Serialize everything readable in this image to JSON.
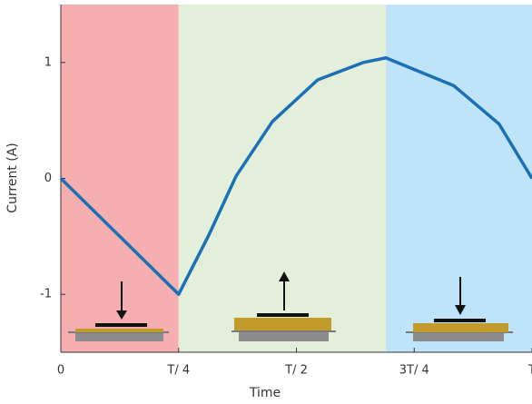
{
  "chart_data": {
    "type": "line",
    "x_label": "Time",
    "y_label": "Current (A)",
    "x": [
      0,
      0.25,
      0.314,
      0.372,
      0.449,
      0.545,
      0.642,
      0.69,
      0.834,
      0.93,
      1.0
    ],
    "series": [
      {
        "color": "#1a6fb5",
        "values": [
          0,
          -1,
          -0.49,
          0.02,
          0.49,
          0.85,
          1.0,
          1.04,
          0.8,
          0.47,
          0
        ]
      }
    ],
    "regions": [
      {
        "start": 0,
        "end": 0.25,
        "color": "#f5aeb0"
      },
      {
        "start": 0.25,
        "end": 0.69,
        "color": "#e3efdb"
      },
      {
        "start": 0.69,
        "end": 1.0,
        "color": "#bfe3f8"
      }
    ],
    "xlim": [
      0,
      1.0
    ],
    "ylim": [
      -1.5,
      1.5
    ],
    "xticks": [
      0,
      {
        "value": 0.25,
        "label": "T/ 4"
      },
      {
        "value": 0.5,
        "label": "T/ 2"
      },
      {
        "value": 0.75,
        "label": "3T/ 4"
      },
      {
        "value": 1.0,
        "label": "T"
      }
    ],
    "yticks": [
      -1,
      0,
      1
    ],
    "grid": false
  }
}
